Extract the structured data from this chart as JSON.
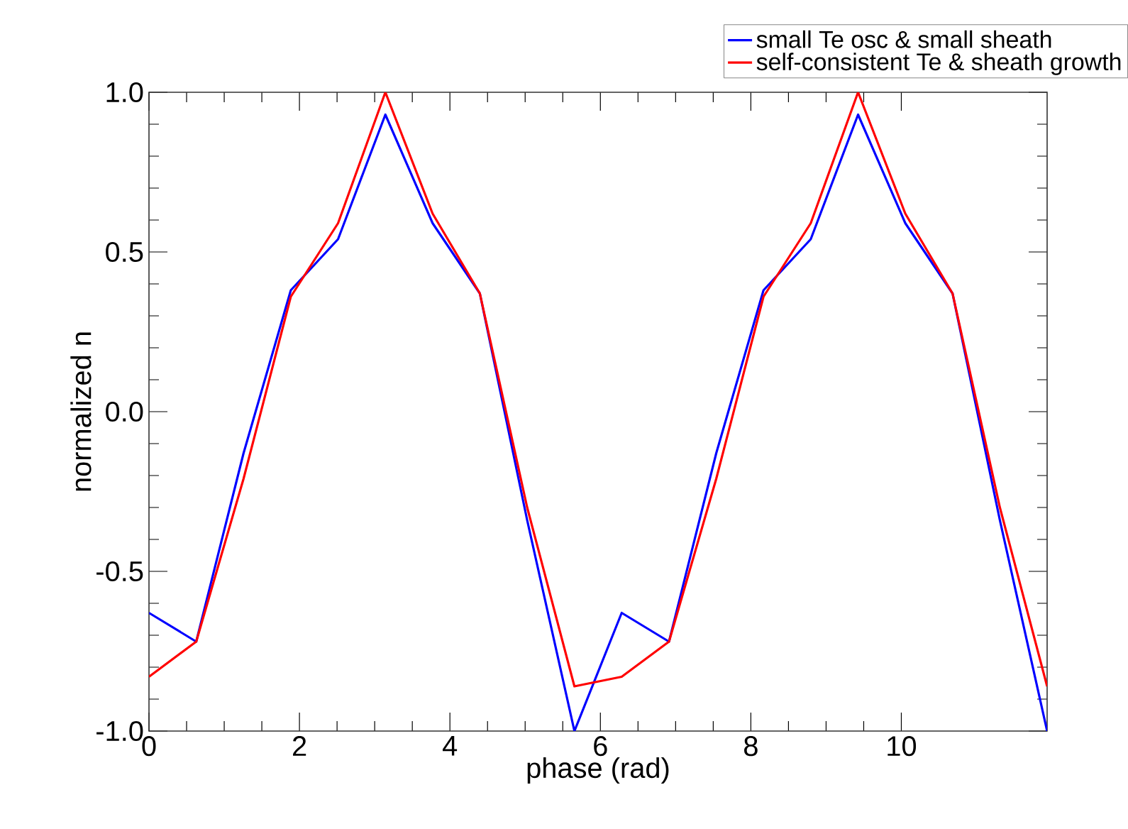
{
  "chart_data": {
    "type": "line",
    "xlabel": "phase (rad)",
    "ylabel": "normalized n",
    "x": [
      0,
      0.628,
      1.257,
      1.885,
      2.513,
      3.142,
      3.77,
      4.398,
      5.027,
      5.655,
      6.283,
      6.912,
      7.54,
      8.168,
      8.796,
      9.425,
      10.053,
      10.681,
      11.31,
      11.938
    ],
    "series": [
      {
        "name": "small Te osc & small sheath",
        "color": "#0000ff",
        "values": [
          -0.63,
          -0.72,
          -0.13,
          0.38,
          0.54,
          0.93,
          0.59,
          0.37,
          -0.34,
          -1.0,
          -0.63,
          -0.72,
          -0.13,
          0.38,
          0.54,
          0.93,
          0.59,
          0.37,
          -0.34,
          -1.0
        ]
      },
      {
        "name": "self-consistent Te & sheath growth",
        "color": "#ff0000",
        "values": [
          -0.83,
          -0.72,
          -0.21,
          0.36,
          0.59,
          1.0,
          0.62,
          0.37,
          -0.3,
          -0.86,
          -0.83,
          -0.72,
          -0.21,
          0.36,
          0.59,
          1.0,
          0.62,
          0.37,
          -0.3,
          -0.86
        ]
      }
    ],
    "xlim": [
      0,
      11.938
    ],
    "ylim": [
      -1.0,
      1.0
    ],
    "xticks": [
      0,
      2,
      4,
      6,
      8,
      10
    ],
    "yticks": [
      {
        "value": -1.0,
        "label": "-1.0"
      },
      {
        "value": -0.5,
        "label": "-0.5"
      },
      {
        "value": 0.0,
        "label": "0.0"
      },
      {
        "value": 0.5,
        "label": "0.5"
      },
      {
        "value": 1.0,
        "label": "1.0"
      }
    ],
    "legend": "top right"
  }
}
